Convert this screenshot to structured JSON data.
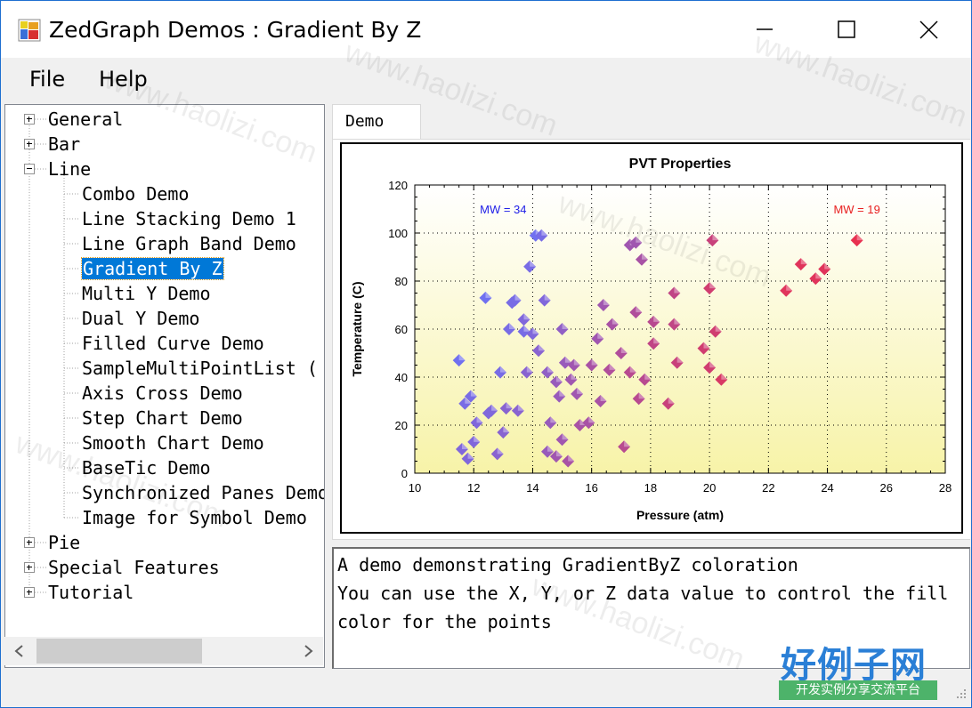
{
  "window": {
    "title": "ZedGraph Demos : Gradient By Z"
  },
  "menu": [
    "File",
    "Help"
  ],
  "tree": {
    "items": [
      {
        "label": "General",
        "level": 0,
        "expander": "plus"
      },
      {
        "label": "Bar",
        "level": 0,
        "expander": "plus"
      },
      {
        "label": "Line",
        "level": 0,
        "expander": "minus"
      },
      {
        "label": "Combo Demo",
        "level": 1
      },
      {
        "label": "Line Stacking Demo 1",
        "level": 1
      },
      {
        "label": "Line Graph Band Demo",
        "level": 1
      },
      {
        "label": "Gradient By Z",
        "level": 1,
        "selected": true
      },
      {
        "label": "Multi Y Demo",
        "level": 1
      },
      {
        "label": "Dual Y Demo",
        "level": 1
      },
      {
        "label": "Filled Curve Demo",
        "level": 1
      },
      {
        "label": "SampleMultiPointList (",
        "level": 1
      },
      {
        "label": "Axis Cross Demo",
        "level": 1
      },
      {
        "label": "Step Chart Demo",
        "level": 1
      },
      {
        "label": "Smooth Chart Demo",
        "level": 1
      },
      {
        "label": "BaseTic Demo",
        "level": 1
      },
      {
        "label": "Synchronized Panes Demo",
        "level": 1
      },
      {
        "label": "Image for Symbol Demo",
        "level": 1
      },
      {
        "label": "Pie",
        "level": 0,
        "expander": "plus"
      },
      {
        "label": "Special Features",
        "level": 0,
        "expander": "plus"
      },
      {
        "label": "Tutorial",
        "level": 0,
        "expander": "plus"
      }
    ]
  },
  "tab": {
    "label": "Demo"
  },
  "description": {
    "lines": [
      "A demo demonstrating GradientByZ coloration",
      "You can use the X, Y, or Z data value to control the fill",
      "color for the points"
    ]
  },
  "watermark": {
    "text": "www.haolizi.com",
    "logo": "好例子网",
    "tagline": "开发实例分享交流平台"
  },
  "chart_data": {
    "type": "scatter",
    "title": "PVT Properties",
    "xlabel": "Pressure (atm)",
    "ylabel": "Temperature (C)",
    "xlim": [
      10,
      28
    ],
    "ylim": [
      0,
      120
    ],
    "xticks": [
      10,
      12,
      14,
      16,
      18,
      20,
      22,
      24,
      26,
      28
    ],
    "yticks": [
      0,
      20,
      40,
      60,
      80,
      100,
      120
    ],
    "grid": true,
    "background_gradient": [
      "#ffffff",
      "#f7f3a8"
    ],
    "annotations": [
      {
        "text": "MW = 34",
        "x": 13.0,
        "y": 110,
        "color": "#2020e8"
      },
      {
        "text": "MW = 19",
        "x": 25.0,
        "y": 110,
        "color": "#e82020"
      }
    ],
    "color_scale": {
      "low": "#7070f0",
      "high": "#e83050",
      "z_range": [
        19,
        34
      ]
    },
    "points": [
      {
        "x": 11.5,
        "y": 47,
        "z": 34
      },
      {
        "x": 11.7,
        "y": 29,
        "z": 33
      },
      {
        "x": 11.9,
        "y": 32,
        "z": 33
      },
      {
        "x": 11.6,
        "y": 10,
        "z": 32
      },
      {
        "x": 11.8,
        "y": 6,
        "z": 32
      },
      {
        "x": 12.0,
        "y": 13,
        "z": 32
      },
      {
        "x": 12.1,
        "y": 21,
        "z": 32
      },
      {
        "x": 12.5,
        "y": 25,
        "z": 32
      },
      {
        "x": 12.6,
        "y": 26,
        "z": 32
      },
      {
        "x": 12.4,
        "y": 73,
        "z": 34
      },
      {
        "x": 12.9,
        "y": 42,
        "z": 33
      },
      {
        "x": 12.8,
        "y": 8,
        "z": 31
      },
      {
        "x": 13.0,
        "y": 17,
        "z": 31
      },
      {
        "x": 13.1,
        "y": 27,
        "z": 31
      },
      {
        "x": 13.2,
        "y": 60,
        "z": 33
      },
      {
        "x": 13.3,
        "y": 71,
        "z": 33
      },
      {
        "x": 13.4,
        "y": 72,
        "z": 33
      },
      {
        "x": 13.5,
        "y": 26,
        "z": 31
      },
      {
        "x": 13.7,
        "y": 59,
        "z": 33
      },
      {
        "x": 13.7,
        "y": 64,
        "z": 32
      },
      {
        "x": 13.8,
        "y": 42,
        "z": 31
      },
      {
        "x": 13.9,
        "y": 86,
        "z": 33
      },
      {
        "x": 14.0,
        "y": 58,
        "z": 32
      },
      {
        "x": 14.1,
        "y": 99,
        "z": 34
      },
      {
        "x": 14.3,
        "y": 99,
        "z": 33
      },
      {
        "x": 14.2,
        "y": 51,
        "z": 31
      },
      {
        "x": 14.4,
        "y": 72,
        "z": 32
      },
      {
        "x": 14.5,
        "y": 42,
        "z": 30
      },
      {
        "x": 14.5,
        "y": 9,
        "z": 29
      },
      {
        "x": 14.6,
        "y": 21,
        "z": 29
      },
      {
        "x": 14.8,
        "y": 38,
        "z": 29
      },
      {
        "x": 14.9,
        "y": 32,
        "z": 29
      },
      {
        "x": 14.8,
        "y": 7,
        "z": 28
      },
      {
        "x": 15.0,
        "y": 14,
        "z": 28
      },
      {
        "x": 15.0,
        "y": 60,
        "z": 30
      },
      {
        "x": 15.1,
        "y": 46,
        "z": 29
      },
      {
        "x": 15.2,
        "y": 5,
        "z": 27
      },
      {
        "x": 15.3,
        "y": 39,
        "z": 28
      },
      {
        "x": 15.4,
        "y": 45,
        "z": 28
      },
      {
        "x": 15.5,
        "y": 33,
        "z": 28
      },
      {
        "x": 15.6,
        "y": 20,
        "z": 27
      },
      {
        "x": 15.9,
        "y": 21,
        "z": 27
      },
      {
        "x": 16.0,
        "y": 45,
        "z": 27
      },
      {
        "x": 16.2,
        "y": 56,
        "z": 28
      },
      {
        "x": 16.3,
        "y": 30,
        "z": 27
      },
      {
        "x": 16.4,
        "y": 70,
        "z": 28
      },
      {
        "x": 16.6,
        "y": 43,
        "z": 26
      },
      {
        "x": 16.7,
        "y": 62,
        "z": 27
      },
      {
        "x": 17.0,
        "y": 50,
        "z": 26
      },
      {
        "x": 17.1,
        "y": 11,
        "z": 25
      },
      {
        "x": 17.3,
        "y": 42,
        "z": 25
      },
      {
        "x": 17.3,
        "y": 95,
        "z": 28
      },
      {
        "x": 17.5,
        "y": 96,
        "z": 28
      },
      {
        "x": 17.5,
        "y": 67,
        "z": 26
      },
      {
        "x": 17.6,
        "y": 31,
        "z": 25
      },
      {
        "x": 17.7,
        "y": 89,
        "z": 27
      },
      {
        "x": 17.8,
        "y": 39,
        "z": 25
      },
      {
        "x": 18.1,
        "y": 63,
        "z": 25
      },
      {
        "x": 18.1,
        "y": 54,
        "z": 24
      },
      {
        "x": 18.6,
        "y": 29,
        "z": 23
      },
      {
        "x": 18.8,
        "y": 62,
        "z": 24
      },
      {
        "x": 18.8,
        "y": 75,
        "z": 24
      },
      {
        "x": 18.9,
        "y": 46,
        "z": 23
      },
      {
        "x": 19.8,
        "y": 52,
        "z": 22
      },
      {
        "x": 20.0,
        "y": 44,
        "z": 22
      },
      {
        "x": 20.0,
        "y": 77,
        "z": 22
      },
      {
        "x": 20.1,
        "y": 97,
        "z": 23
      },
      {
        "x": 20.2,
        "y": 59,
        "z": 22
      },
      {
        "x": 20.4,
        "y": 39,
        "z": 21
      },
      {
        "x": 22.6,
        "y": 76,
        "z": 20
      },
      {
        "x": 23.1,
        "y": 87,
        "z": 20
      },
      {
        "x": 23.6,
        "y": 81,
        "z": 20
      },
      {
        "x": 23.9,
        "y": 85,
        "z": 20
      },
      {
        "x": 25.0,
        "y": 97,
        "z": 19
      }
    ]
  }
}
